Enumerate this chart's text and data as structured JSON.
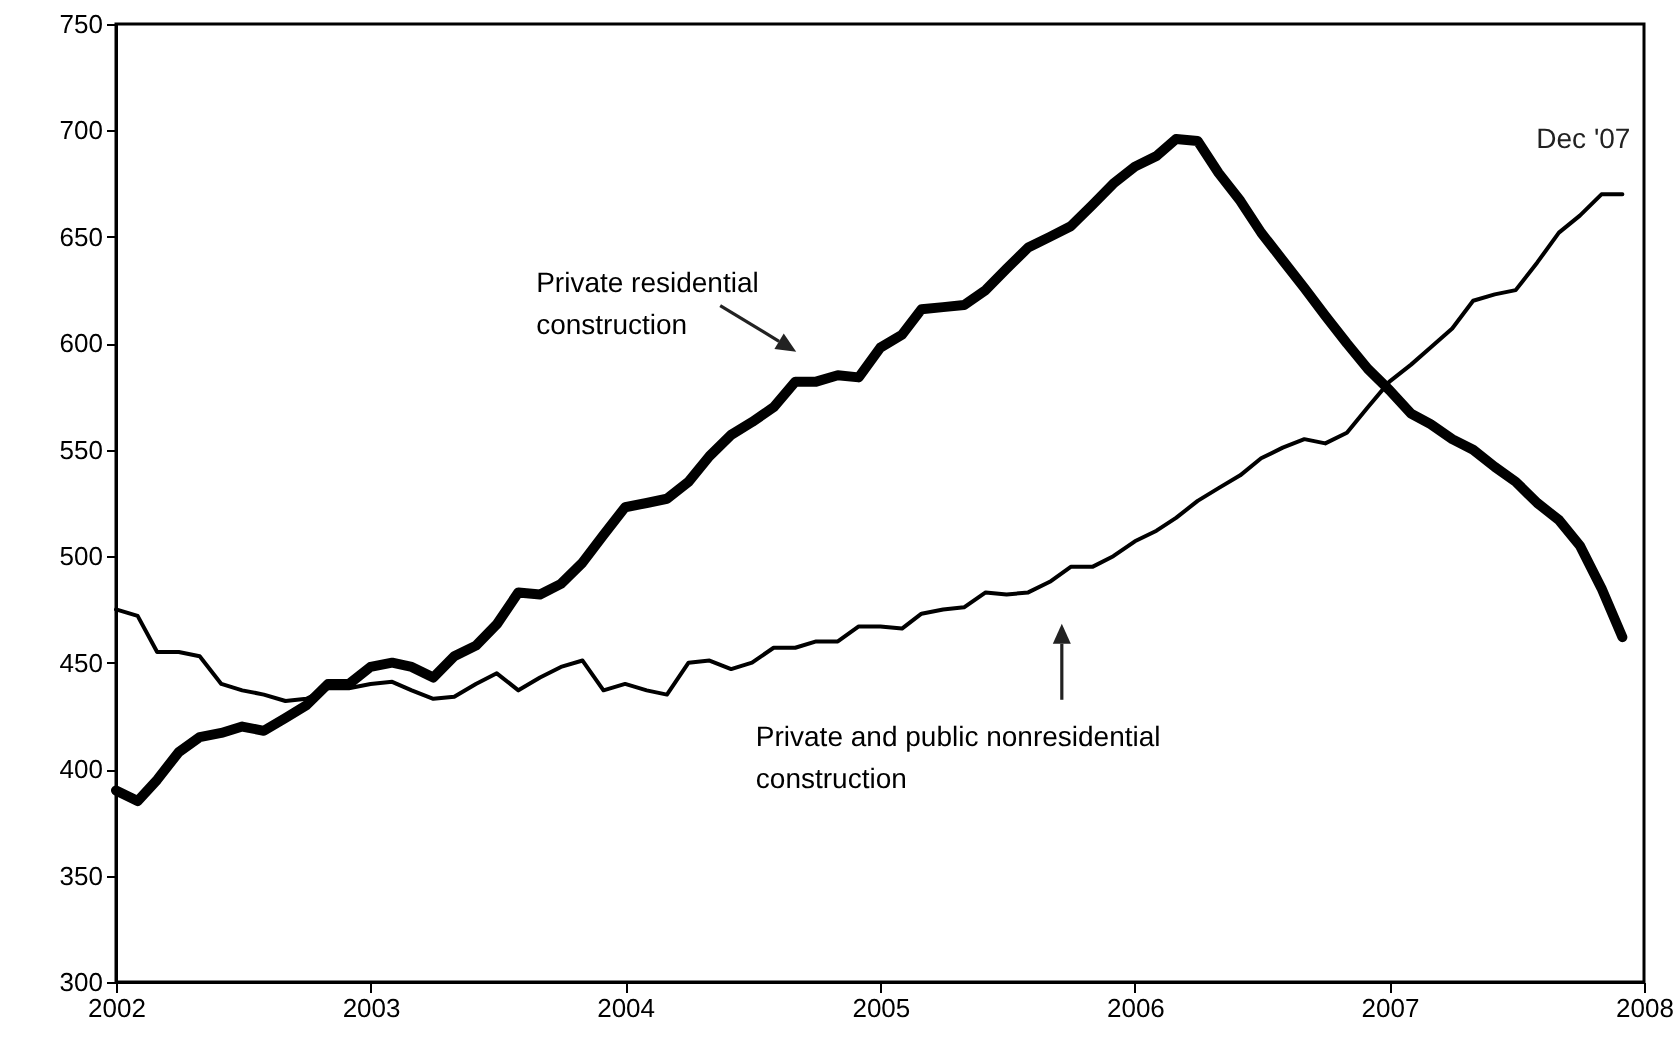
{
  "chart_data": {
    "type": "line",
    "annotations": [
      {
        "text": "Dec '07",
        "x": "2007-12",
        "y": 670
      }
    ],
    "x": [
      "2002-01",
      "2002-02",
      "2002-03",
      "2002-04",
      "2002-05",
      "2002-06",
      "2002-07",
      "2002-08",
      "2002-09",
      "2002-10",
      "2002-11",
      "2002-12",
      "2003-01",
      "2003-02",
      "2003-03",
      "2003-04",
      "2003-05",
      "2003-06",
      "2003-07",
      "2003-08",
      "2003-09",
      "2003-10",
      "2003-11",
      "2003-12",
      "2004-01",
      "2004-02",
      "2004-03",
      "2004-04",
      "2004-05",
      "2004-06",
      "2004-07",
      "2004-08",
      "2004-09",
      "2004-10",
      "2004-11",
      "2004-12",
      "2005-01",
      "2005-02",
      "2005-03",
      "2005-04",
      "2005-05",
      "2005-06",
      "2005-07",
      "2005-08",
      "2005-09",
      "2005-10",
      "2005-11",
      "2005-12",
      "2006-01",
      "2006-02",
      "2006-03",
      "2006-04",
      "2006-05",
      "2006-06",
      "2006-07",
      "2006-08",
      "2006-09",
      "2006-10",
      "2006-11",
      "2006-12",
      "2007-01",
      "2007-02",
      "2007-03",
      "2007-04",
      "2007-05",
      "2007-06",
      "2007-07",
      "2007-08",
      "2007-09",
      "2007-10",
      "2007-11",
      "2007-12"
    ],
    "series": [
      {
        "name": "Private residential construction",
        "color": "#000000",
        "values": [
          390,
          385,
          395,
          408,
          415,
          417,
          420,
          418,
          424,
          430,
          440,
          440,
          448,
          450,
          448,
          443,
          453,
          458,
          468,
          483,
          482,
          487,
          497,
          510,
          523,
          525,
          527,
          535,
          547,
          557,
          563,
          570,
          582,
          582,
          585,
          584,
          598,
          604,
          616,
          617,
          618,
          625,
          635,
          645,
          650,
          655,
          665,
          675,
          683,
          688,
          696,
          695,
          680,
          667,
          652,
          639,
          626,
          613,
          600,
          588,
          578,
          567,
          562,
          555,
          550,
          542,
          535,
          525,
          517,
          505,
          485,
          462
        ]
      },
      {
        "name": "Private and public nonresidential construction",
        "color": "#000000",
        "values": [
          475,
          472,
          455,
          455,
          453,
          440,
          437,
          435,
          432,
          433,
          438,
          438,
          440,
          441,
          437,
          433,
          434,
          440,
          445,
          437,
          443,
          448,
          451,
          437,
          440,
          437,
          435,
          450,
          451,
          447,
          450,
          457,
          457,
          460,
          460,
          467,
          467,
          466,
          473,
          475,
          476,
          483,
          482,
          483,
          488,
          495,
          495,
          500,
          507,
          512,
          518,
          526,
          532,
          538,
          546,
          551,
          555,
          553,
          558,
          570,
          582,
          590,
          598,
          607,
          620,
          623,
          625,
          638,
          652,
          660,
          670,
          670
        ]
      }
    ],
    "xlim": [
      "2002-01",
      "2008-01"
    ],
    "xticks": [
      "2002",
      "2003",
      "2004",
      "2005",
      "2006",
      "2007",
      "2008"
    ],
    "ylim": [
      300,
      750
    ],
    "yticks": [
      300,
      350,
      400,
      450,
      500,
      550,
      600,
      650,
      700,
      750
    ]
  }
}
